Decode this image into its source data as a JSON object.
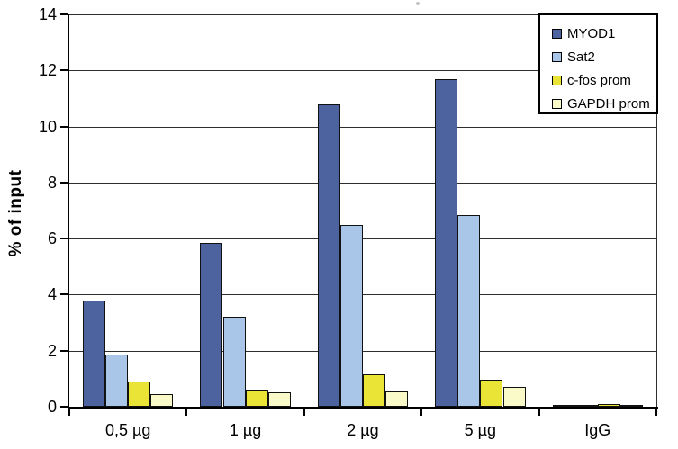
{
  "chart_data": {
    "type": "bar",
    "title": "",
    "xlabel": "",
    "ylabel": "% of input",
    "ylim": [
      0,
      14
    ],
    "yticks": [
      0,
      2,
      4,
      6,
      8,
      10,
      12,
      14
    ],
    "grid": true,
    "legend_position": "top-right",
    "categories": [
      "0,5 µg",
      "1 µg",
      "2 µg",
      "5 µg",
      "IgG"
    ],
    "series": [
      {
        "name": "MYOD1",
        "color": "#4d63a0",
        "values": [
          3.8,
          5.85,
          10.8,
          11.7,
          0.05
        ]
      },
      {
        "name": "Sat2",
        "color": "#a9c6e8",
        "values": [
          1.85,
          3.2,
          6.5,
          6.85,
          0.05
        ]
      },
      {
        "name": "c-fos prom",
        "color": "#e9e436",
        "values": [
          0.9,
          0.6,
          1.15,
          0.95,
          0.1
        ]
      },
      {
        "name": "GAPDH prom",
        "color": "#fafac8",
        "values": [
          0.45,
          0.5,
          0.55,
          0.7,
          0.08
        ]
      }
    ]
  },
  "colors": {
    "background": "#ffffff",
    "axis": "#000000",
    "grid": "#2e2e2e",
    "bar_border": "#111111",
    "legend_border": "#000000",
    "text": "#000000"
  }
}
